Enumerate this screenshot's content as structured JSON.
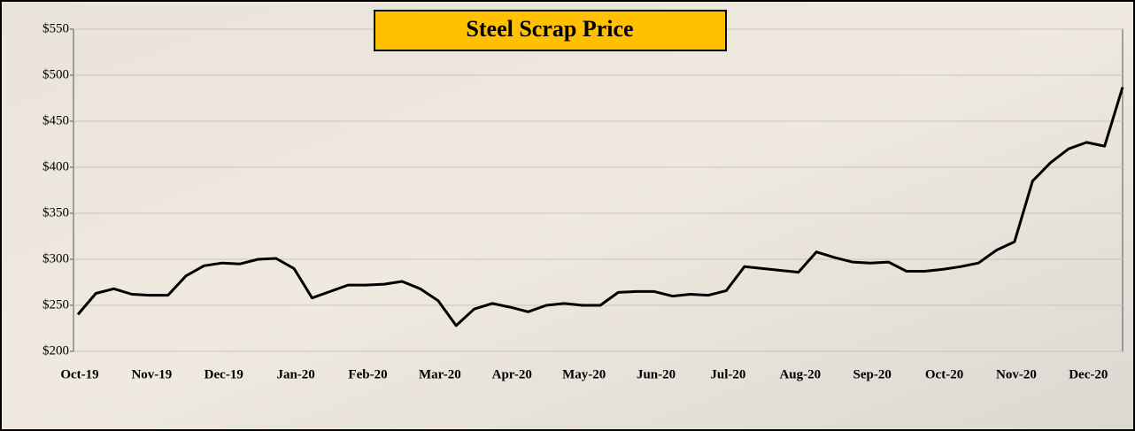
{
  "chart_data": {
    "type": "line",
    "title": "Steel Scrap Price",
    "x": [
      "Oct-19",
      null,
      null,
      null,
      "Nov-19",
      null,
      null,
      null,
      "Dec-19",
      null,
      null,
      null,
      "Jan-20",
      null,
      null,
      null,
      "Feb-20",
      null,
      null,
      null,
      "Mar-20",
      null,
      null,
      null,
      "Apr-20",
      null,
      null,
      null,
      "May-20",
      null,
      null,
      null,
      "Jun-20",
      null,
      null,
      null,
      "Jul-20",
      null,
      null,
      null,
      "Aug-20",
      null,
      null,
      null,
      "Sep-20",
      null,
      null,
      null,
      "Oct-20",
      null,
      null,
      null,
      "Nov-20",
      null,
      null,
      null,
      "Dec-20",
      null,
      null
    ],
    "series": [
      {
        "name": "Steel Scrap Price",
        "color": "#000000",
        "values": [
          240,
          263,
          268,
          262,
          261,
          261,
          282,
          293,
          296,
          295,
          300,
          301,
          290,
          258,
          265,
          272,
          272,
          273,
          276,
          268,
          255,
          228,
          246,
          252,
          248,
          243,
          250,
          252,
          250,
          250,
          264,
          265,
          265,
          260,
          262,
          261,
          266,
          292,
          290,
          288,
          286,
          308,
          302,
          297,
          296,
          297,
          287,
          287,
          289,
          292,
          296,
          310,
          319,
          385,
          405,
          420,
          427,
          423,
          487
        ]
      }
    ],
    "ylim": [
      200,
      550
    ],
    "yticks": [
      {
        "value": 200,
        "label": "$200"
      },
      {
        "value": 250,
        "label": "$250"
      },
      {
        "value": 300,
        "label": "$300"
      },
      {
        "value": 350,
        "label": "$350"
      },
      {
        "value": 400,
        "label": "$400"
      },
      {
        "value": 450,
        "label": "$450"
      },
      {
        "value": 500,
        "label": "$500"
      },
      {
        "value": 550,
        "label": "$550"
      }
    ],
    "grid": true
  }
}
